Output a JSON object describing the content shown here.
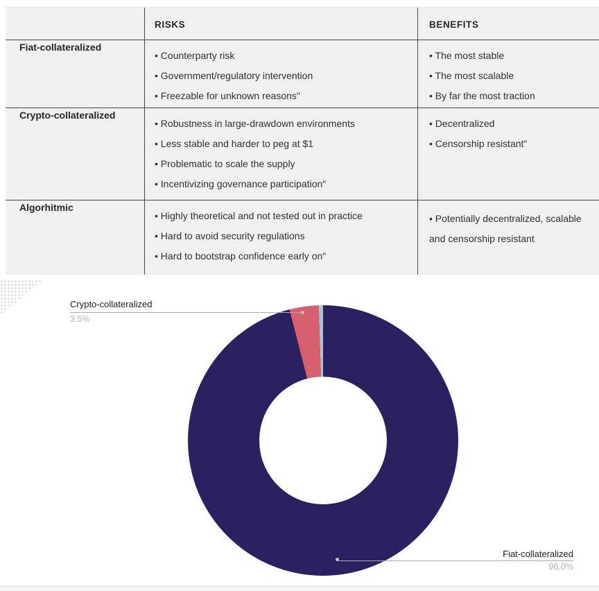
{
  "table": {
    "columns": [
      "",
      "RISKS",
      "BENEFITS"
    ],
    "rows": [
      {
        "label": "Fiat-collateralized",
        "risks": [
          "Counterparty risk",
          "Government/regulatory intervention",
          "Freezable for unknown reasons\""
        ],
        "benefits": [
          "The most stable",
          "The most scalable",
          "By far the most traction"
        ]
      },
      {
        "label": "Crypto-collateralized",
        "risks": [
          "Robustness in large-drawdown environments",
          "Less stable and harder to peg at $1",
          "Problematic to scale the supply",
          "Incentivizing governance participation\""
        ],
        "benefits": [
          "Decentralized",
          "Censorship resistant\""
        ]
      },
      {
        "label": "Algorhitmic",
        "risks": [
          "Highly theoretical and not tested out in practice",
          "Hard to avoid security regulations",
          "Hard to bootstrap confidence early on\""
        ],
        "benefits": [
          "Potentially decentralized, scalable  and censorship resistant"
        ]
      }
    ]
  },
  "chart_data": {
    "type": "pie",
    "subtype": "donut",
    "direction": "clockwise",
    "start_angle_deg": 0,
    "inner_radius_ratio": 0.47,
    "segments": [
      {
        "label": "Fiat-collateralized",
        "value": 96.0,
        "color": "#2b2060"
      },
      {
        "label": "Crypto-collateralized",
        "value": 3.5,
        "color": "#d6606e"
      },
      {
        "label": "",
        "value": 0.5,
        "color": "#a3c6d0"
      }
    ],
    "callouts": {
      "crypto": {
        "name": "Crypto-collateralized",
        "pct": "3.5%"
      },
      "fiat": {
        "name": "Fiat-collateralized",
        "pct": "96.0%"
      }
    }
  },
  "colors": {
    "table_background": "#f0f0f0",
    "rule_line": "#474747",
    "leader_line": "#ababab",
    "pct_text": "#b2b2b2"
  }
}
